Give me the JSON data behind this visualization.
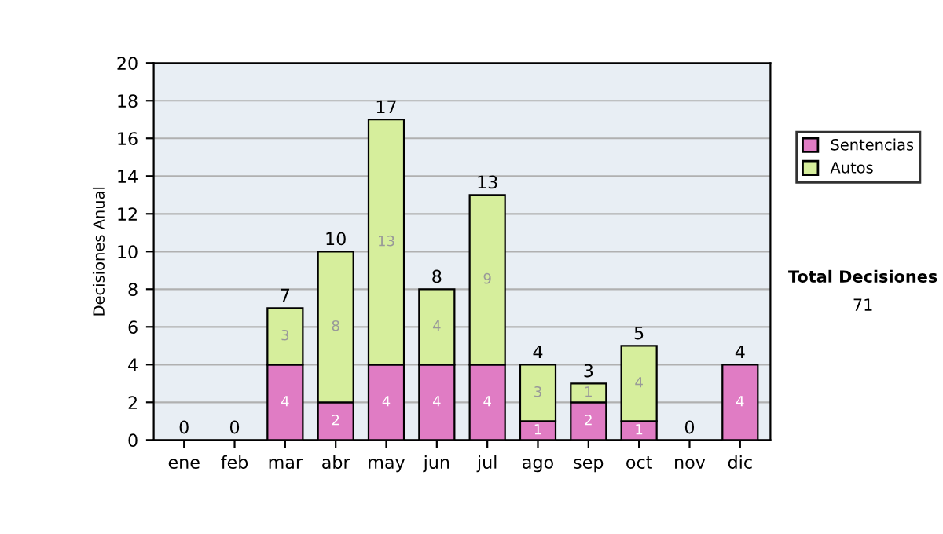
{
  "chart_data": {
    "type": "bar",
    "stacked": true,
    "ylabel": "Decisiones Anual",
    "categories": [
      "ene",
      "feb",
      "mar",
      "abr",
      "may",
      "jun",
      "jul",
      "ago",
      "sep",
      "oct",
      "nov",
      "dic"
    ],
    "series": [
      {
        "name": "Sentencias",
        "color": "#e07cc4",
        "values": [
          0,
          0,
          4,
          2,
          4,
          4,
          4,
          1,
          2,
          1,
          0,
          4
        ],
        "value_labels": [
          null,
          null,
          "4",
          "2",
          "4",
          "4",
          "4",
          "1",
          "2",
          "1",
          null,
          "4"
        ]
      },
      {
        "name": "Autos",
        "color": "#d6ee9c",
        "values": [
          0,
          0,
          3,
          8,
          13,
          4,
          9,
          3,
          1,
          4,
          0,
          0
        ],
        "value_labels": [
          null,
          null,
          "3",
          "8",
          "13",
          "4",
          "9",
          "3",
          "1",
          "4",
          null,
          null
        ]
      }
    ],
    "totals": [
      "0",
      "0",
      "7",
      "10",
      "17",
      "8",
      "13",
      "4",
      "3",
      "5",
      "0",
      "4"
    ],
    "ylim": [
      0,
      20
    ],
    "yticks": [
      0,
      2,
      4,
      6,
      8,
      10,
      12,
      14,
      16,
      18,
      20
    ],
    "grid": "y",
    "legend": "right",
    "annotations": [
      "Total Decisiones",
      "71"
    ]
  }
}
